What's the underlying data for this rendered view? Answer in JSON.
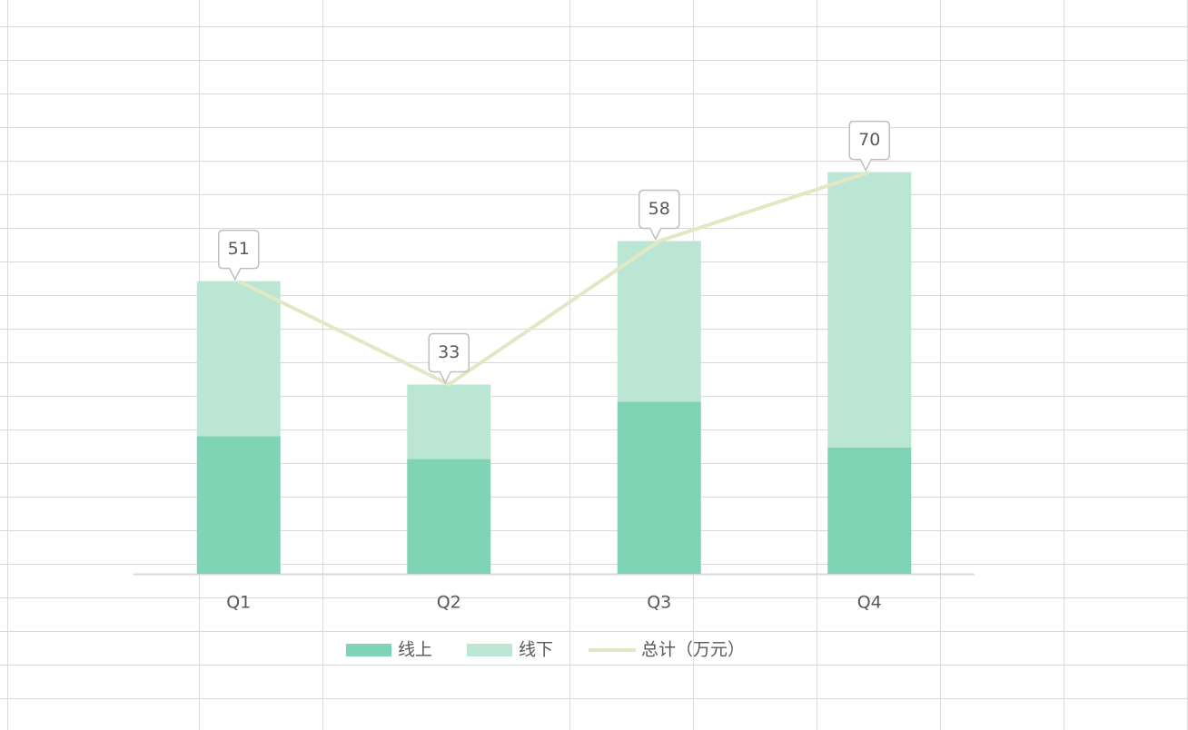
{
  "chart_data": {
    "type": "bar-line",
    "categories": [
      "Q1",
      "Q2",
      "Q3",
      "Q4"
    ],
    "series": [
      {
        "name": "线上",
        "type": "bar",
        "color": "#80d4b6",
        "values": [
          24,
          20,
          30,
          22
        ]
      },
      {
        "name": "线下",
        "type": "bar",
        "color": "#bbe6d4",
        "values": [
          27,
          13,
          28,
          48
        ]
      },
      {
        "name": "总计（万元）",
        "type": "line",
        "color": "#e2e8c4",
        "values": [
          51,
          33,
          58,
          70
        ]
      }
    ],
    "stacked": true,
    "ylim": [
      0,
      100
    ],
    "legend": "bottom"
  }
}
